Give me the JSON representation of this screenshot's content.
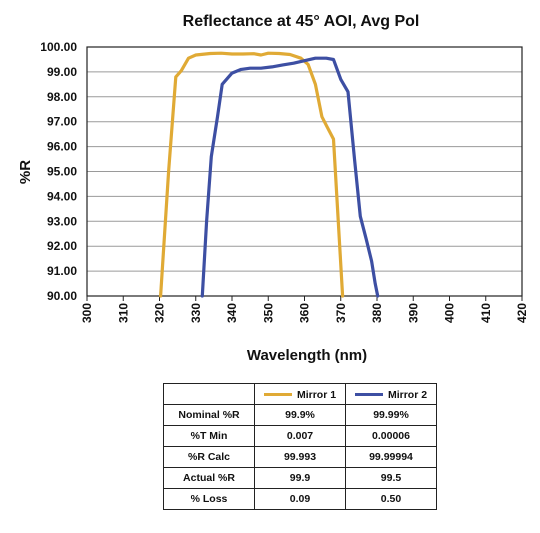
{
  "chart_data": {
    "type": "line",
    "title": "Reflectance at 45° AOI, Avg Pol",
    "xlabel": "Wavelength (nm)",
    "ylabel": "%R",
    "xlim": [
      300,
      420
    ],
    "ylim": [
      90,
      100
    ],
    "xticks": [
      "300",
      "310",
      "320",
      "330",
      "340",
      "350",
      "360",
      "370",
      "380",
      "390",
      "400",
      "410",
      "420"
    ],
    "yticks": [
      "90.00",
      "91.00",
      "92.00",
      "93.00",
      "94.00",
      "95.00",
      "96.00",
      "97.00",
      "98.00",
      "99.00",
      "100.00"
    ],
    "grid": "horizontal",
    "series": [
      {
        "name": "Mirror 1",
        "color": "#e0aa35",
        "x": [
          320.3,
          322.5,
          324.5,
          326,
          328,
          330,
          334,
          337,
          340,
          343,
          346,
          348,
          350,
          353,
          356,
          359,
          361,
          363,
          364.8,
          366.2,
          368,
          370.5
        ],
        "y": [
          90,
          95,
          98.8,
          99.05,
          99.55,
          99.68,
          99.74,
          99.75,
          99.72,
          99.72,
          99.73,
          99.68,
          99.75,
          99.74,
          99.7,
          99.55,
          99.3,
          98.5,
          97.2,
          96.8,
          96.3,
          90
        ]
      },
      {
        "name": "Mirror 2",
        "color": "#3d4fa3",
        "x": [
          331.8,
          333,
          334.3,
          336,
          337.3,
          340,
          342.5,
          345,
          348,
          351,
          354,
          357,
          360,
          363,
          366,
          368,
          370,
          372,
          373.8,
          375.4,
          377,
          378.5,
          379.5,
          380.2
        ],
        "y": [
          90,
          93,
          95.6,
          97.2,
          98.5,
          98.95,
          99.1,
          99.15,
          99.15,
          99.2,
          99.28,
          99.35,
          99.45,
          99.55,
          99.55,
          99.5,
          98.7,
          98.2,
          95.5,
          93.2,
          92.3,
          91.4,
          90.5,
          90
        ]
      }
    ]
  },
  "table": {
    "header": [
      "",
      "Mirror 1",
      "Mirror 2"
    ],
    "rows": [
      {
        "label": "Nominal %R",
        "m1": "99.9%",
        "m2": "99.99%"
      },
      {
        "label": "%T Min",
        "m1": "0.007",
        "m2": "0.00006"
      },
      {
        "label": "%R Calc",
        "m1": "99.993",
        "m2": "99.99994"
      },
      {
        "label": "Actual %R",
        "m1": "99.9",
        "m2": "99.5"
      },
      {
        "label": "% Loss",
        "m1": "0.09",
        "m2": "0.50"
      }
    ]
  }
}
